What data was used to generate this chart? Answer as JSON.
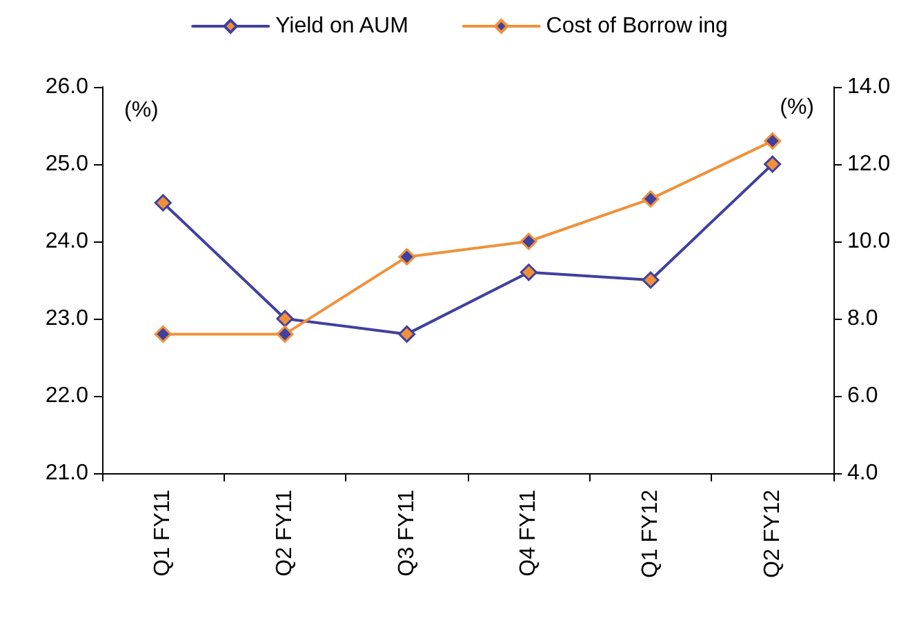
{
  "chart_data": {
    "type": "line",
    "ylabel": "(%)",
    "y2label": "(%)",
    "categories": [
      "Q1 FY11",
      "Q2 FY11",
      "Q3 FY11",
      "Q4 FY11",
      "Q1 FY12",
      "Q2 FY12"
    ],
    "series": [
      {
        "name": "Yield on AUM",
        "color": "#4040a0",
        "values": [
          24.5,
          23.0,
          22.8,
          23.6,
          23.5,
          25.0
        ]
      },
      {
        "name": "Cost of Borrow ing",
        "color": "#f0913a",
        "axis": "y2",
        "values": [
          7.6,
          7.6,
          9.6,
          10.0,
          11.1,
          12.6
        ]
      }
    ],
    "ylim": [
      21,
      26
    ],
    "yticks": [
      {
        "value": 21,
        "label": "21.0"
      },
      {
        "value": 22,
        "label": "22.0"
      },
      {
        "value": 23,
        "label": "23.0"
      },
      {
        "value": 24,
        "label": "24.0"
      },
      {
        "value": 25,
        "label": "25.0"
      },
      {
        "value": 26,
        "label": "26.0"
      }
    ],
    "y2lim": [
      4,
      14
    ],
    "y2ticks": [
      {
        "value": 4,
        "label": "4.0"
      },
      {
        "value": 6,
        "label": "6.0"
      },
      {
        "value": 8,
        "label": "8.0"
      },
      {
        "value": 10,
        "label": "10.0"
      },
      {
        "value": 12,
        "label": "12.0"
      },
      {
        "value": 14,
        "label": "14.0"
      }
    ],
    "legend": "top",
    "marker": "diamond",
    "line_style": "solid"
  }
}
